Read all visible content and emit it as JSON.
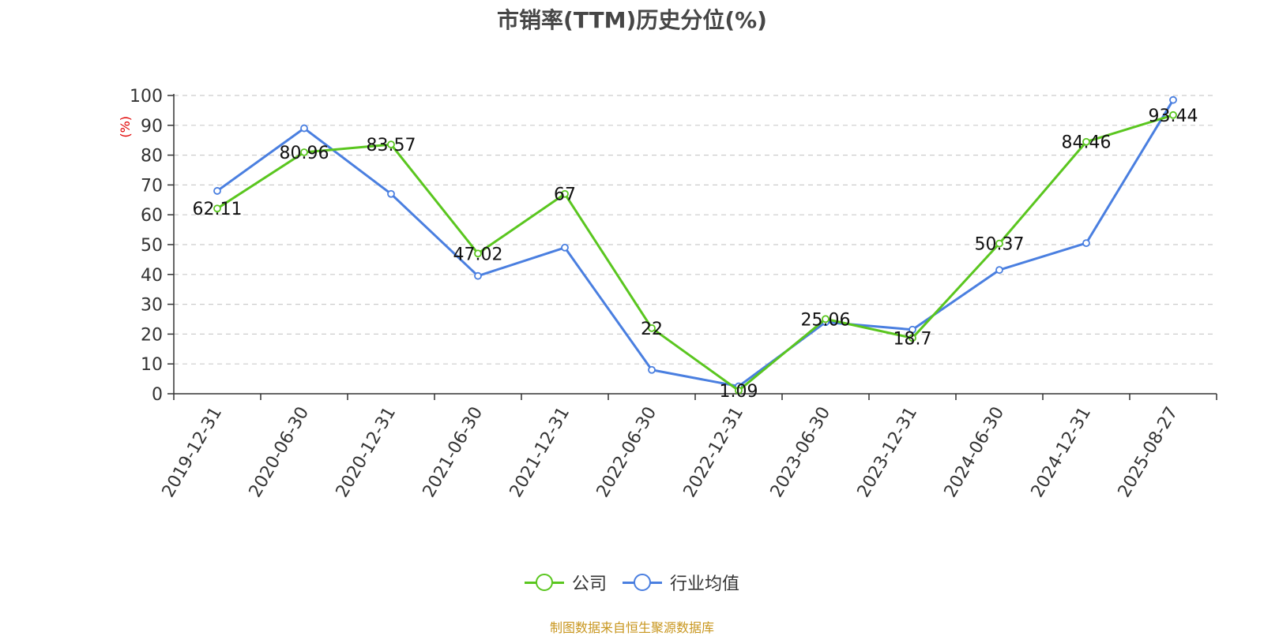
{
  "title": "市销率(TTM)历史分位(%)",
  "source_text": "制图数据来自恒生聚源数据库",
  "colors": {
    "company": "#5ac61f",
    "industry": "#4a7fe0",
    "ylabel": "#e00000",
    "source": "#c8961e"
  },
  "chart_data": {
    "type": "line",
    "title": "市销率(TTM)历史分位(%)",
    "ylabel": "(%)",
    "xlabel": "",
    "ylim": [
      0,
      100
    ],
    "yticks": [
      0,
      10,
      20,
      30,
      40,
      50,
      60,
      70,
      80,
      90,
      100
    ],
    "grid": true,
    "legend_position": "bottom",
    "categories": [
      "2019-12-31",
      "2020-06-30",
      "2020-12-31",
      "2021-06-30",
      "2021-12-31",
      "2022-06-30",
      "2022-12-31",
      "2023-06-30",
      "2023-12-31",
      "2024-06-30",
      "2024-12-31",
      "2025-08-27"
    ],
    "series": [
      {
        "name": "公司",
        "color": "#5ac61f",
        "show_labels": true,
        "labels": [
          "62.11",
          "80.96",
          "83.57",
          "47.02",
          "67",
          "22",
          "1.09",
          "25.06",
          "18.7",
          "50.37",
          "84.46",
          "93.44"
        ],
        "values": [
          62.11,
          80.96,
          83.57,
          47.02,
          67,
          22,
          1.09,
          25.06,
          18.7,
          50.37,
          84.46,
          93.44
        ]
      },
      {
        "name": "行业均值",
        "color": "#4a7fe0",
        "show_labels": false,
        "values": [
          68,
          89,
          67,
          39.5,
          49,
          8,
          2.5,
          24,
          21.5,
          41.5,
          50.5,
          98.5
        ]
      }
    ]
  }
}
